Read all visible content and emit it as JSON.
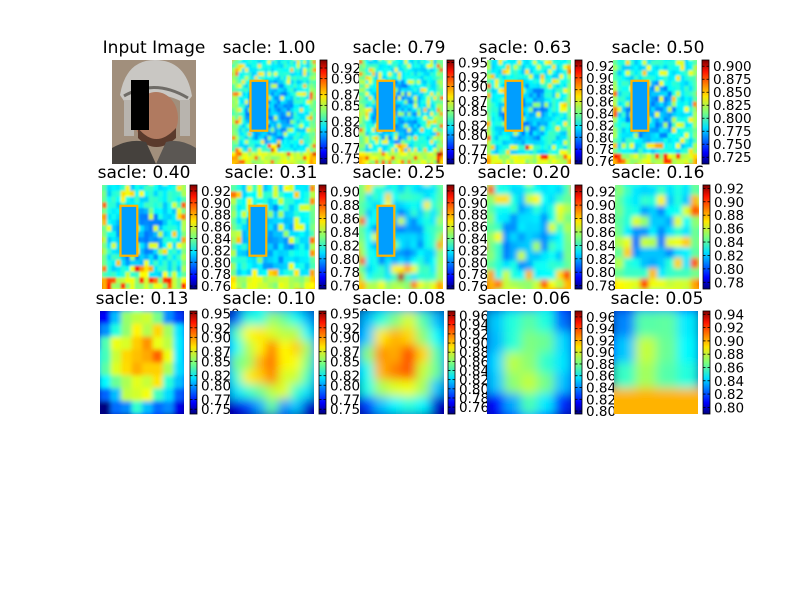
{
  "figure": {
    "input_title": "Input Image"
  },
  "chart_data": [
    {
      "type": "heatmap",
      "title": "sacle: 1.00",
      "colorbar_ticks": [
        "0.92",
        "0.90",
        "0.87",
        "0.85",
        "0.82",
        "0.80",
        "0.77",
        "0.75"
      ],
      "colorbar_range": [
        0.74,
        0.935
      ]
    },
    {
      "type": "heatmap",
      "title": "sacle: 0.79",
      "colorbar_ticks": [
        "0.950",
        "0.92",
        "0.90",
        "0.87",
        "0.85",
        "0.82",
        "0.80",
        "0.77",
        "0.75"
      ],
      "colorbar_range": [
        0.74,
        0.955
      ]
    },
    {
      "type": "heatmap",
      "title": "sacle: 0.63",
      "colorbar_ticks": [
        "0.92",
        "0.90",
        "0.88",
        "0.86",
        "0.84",
        "0.82",
        "0.80",
        "0.78",
        "0.76"
      ],
      "colorbar_range": [
        0.755,
        0.93
      ]
    },
    {
      "type": "heatmap",
      "title": "sacle: 0.50",
      "colorbar_ticks": [
        "0.900",
        "0.875",
        "0.850",
        "0.825",
        "0.800",
        "0.775",
        "0.750",
        "0.725"
      ],
      "colorbar_range": [
        0.712,
        0.912
      ]
    },
    {
      "type": "heatmap",
      "title": "sacle: 0.40",
      "colorbar_ticks": [
        "0.92",
        "0.90",
        "0.88",
        "0.86",
        "0.84",
        "0.82",
        "0.80",
        "0.78",
        "0.76"
      ],
      "colorbar_range": [
        0.755,
        0.93
      ]
    },
    {
      "type": "heatmap",
      "title": "sacle: 0.31",
      "colorbar_ticks": [
        "0.90",
        "0.88",
        "0.86",
        "0.84",
        "0.82",
        "0.80",
        "0.78",
        "0.76"
      ],
      "colorbar_range": [
        0.755,
        0.91
      ]
    },
    {
      "type": "heatmap",
      "title": "sacle: 0.25",
      "colorbar_ticks": [
        "0.92",
        "0.90",
        "0.88",
        "0.86",
        "0.84",
        "0.82",
        "0.80",
        "0.78",
        "0.76"
      ],
      "colorbar_range": [
        0.755,
        0.93
      ]
    },
    {
      "type": "heatmap",
      "title": "sacle: 0.20",
      "colorbar_ticks": [
        "0.92",
        "0.90",
        "0.88",
        "0.86",
        "0.84",
        "0.82",
        "0.80",
        "0.78"
      ],
      "colorbar_range": [
        0.775,
        0.93
      ]
    },
    {
      "type": "heatmap",
      "title": "sacle: 0.16",
      "colorbar_ticks": [
        "0.92",
        "0.90",
        "0.88",
        "0.86",
        "0.84",
        "0.82",
        "0.80",
        "0.78"
      ],
      "colorbar_range": [
        0.77,
        0.925
      ]
    },
    {
      "type": "heatmap",
      "title": "sacle: 0.13",
      "colorbar_ticks": [
        "0.950",
        "0.92",
        "0.90",
        "0.87",
        "0.85",
        "0.82",
        "0.80",
        "0.77",
        "0.75"
      ],
      "colorbar_range": [
        0.74,
        0.955
      ]
    },
    {
      "type": "heatmap",
      "title": "sacle: 0.10",
      "colorbar_ticks": [
        "0.950",
        "0.92",
        "0.90",
        "0.87",
        "0.85",
        "0.82",
        "0.80",
        "0.77",
        "0.75"
      ],
      "colorbar_range": [
        0.74,
        0.955
      ]
    },
    {
      "type": "heatmap",
      "title": "sacle: 0.08",
      "colorbar_ticks": [
        "0.96",
        "0.94",
        "0.92",
        "0.90",
        "0.88",
        "0.86",
        "0.84",
        "0.82",
        "0.80",
        "0.78",
        "0.76"
      ],
      "colorbar_range": [
        0.745,
        0.97
      ]
    },
    {
      "type": "heatmap",
      "title": "sacle: 0.06",
      "colorbar_ticks": [
        "0.96",
        "0.94",
        "0.92",
        "0.90",
        "0.88",
        "0.86",
        "0.84",
        "0.82",
        "0.80"
      ],
      "colorbar_range": [
        0.795,
        0.97
      ]
    },
    {
      "type": "heatmap",
      "title": "sacle: 0.05",
      "colorbar_ticks": [
        "0.94",
        "0.92",
        "0.90",
        "0.88",
        "0.86",
        "0.84",
        "0.82",
        "0.80"
      ],
      "colorbar_range": [
        0.79,
        0.945
      ]
    }
  ]
}
